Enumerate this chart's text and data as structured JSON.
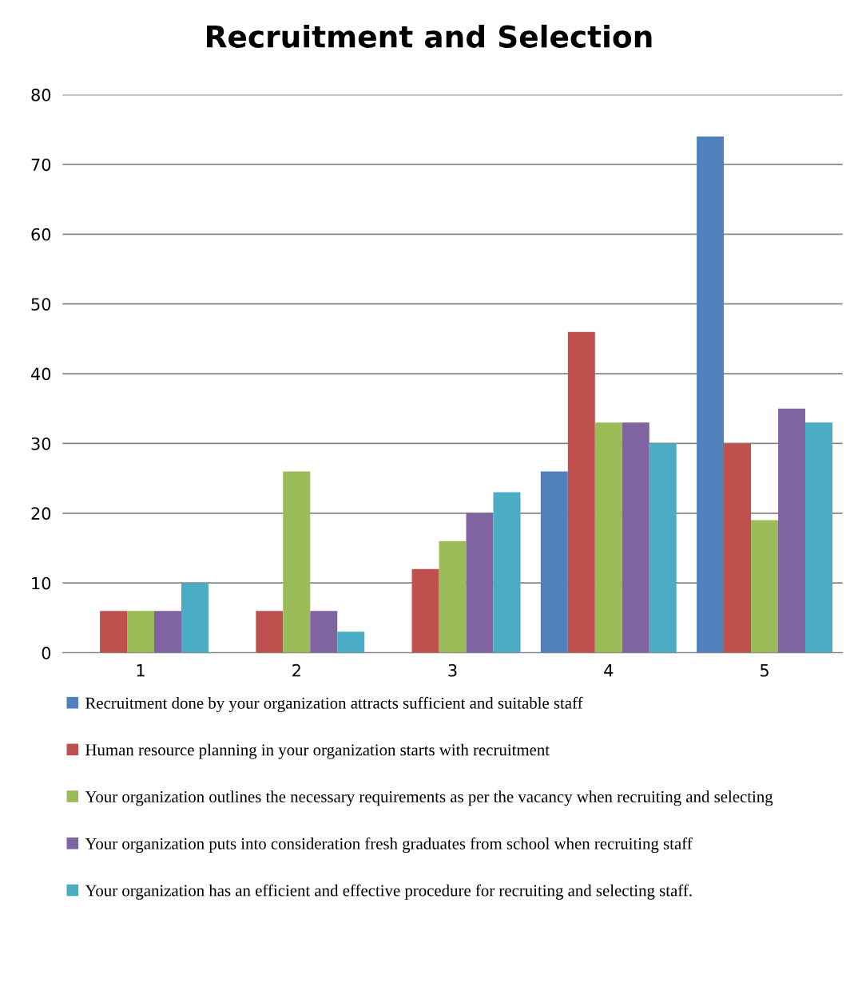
{
  "chart_data": {
    "type": "bar",
    "title": "Recruitment and Selection",
    "categories": [
      "1",
      "2",
      "3",
      "4",
      "5"
    ],
    "series": [
      {
        "name": "Recruitment done by your organization attracts sufficient and suitable staff",
        "color": "#4f81bd",
        "values": [
          null,
          null,
          null,
          26,
          74
        ]
      },
      {
        "name": "Human resource planning in your organization starts with recruitment",
        "color": "#c0504d",
        "values": [
          6,
          6,
          12,
          46,
          30
        ]
      },
      {
        "name": "Your organization outlines the necessary requirements as per the vacancy when recruiting and selecting",
        "color": "#9bbb59",
        "values": [
          6,
          26,
          16,
          33,
          19
        ]
      },
      {
        "name": "Your organization puts into consideration fresh graduates from school when recruiting staff",
        "color": "#8064a2",
        "values": [
          6,
          6,
          20,
          33,
          35
        ]
      },
      {
        "name": "Your organization has an efficient and effective procedure for recruiting and selecting staff.",
        "color": "#4bacc6",
        "values": [
          10,
          3,
          23,
          30,
          33
        ]
      }
    ],
    "ylim": [
      0,
      80
    ],
    "yticks": [
      0,
      10,
      20,
      30,
      40,
      50,
      60,
      70,
      80
    ],
    "grid": "y",
    "legend": "bottom"
  }
}
